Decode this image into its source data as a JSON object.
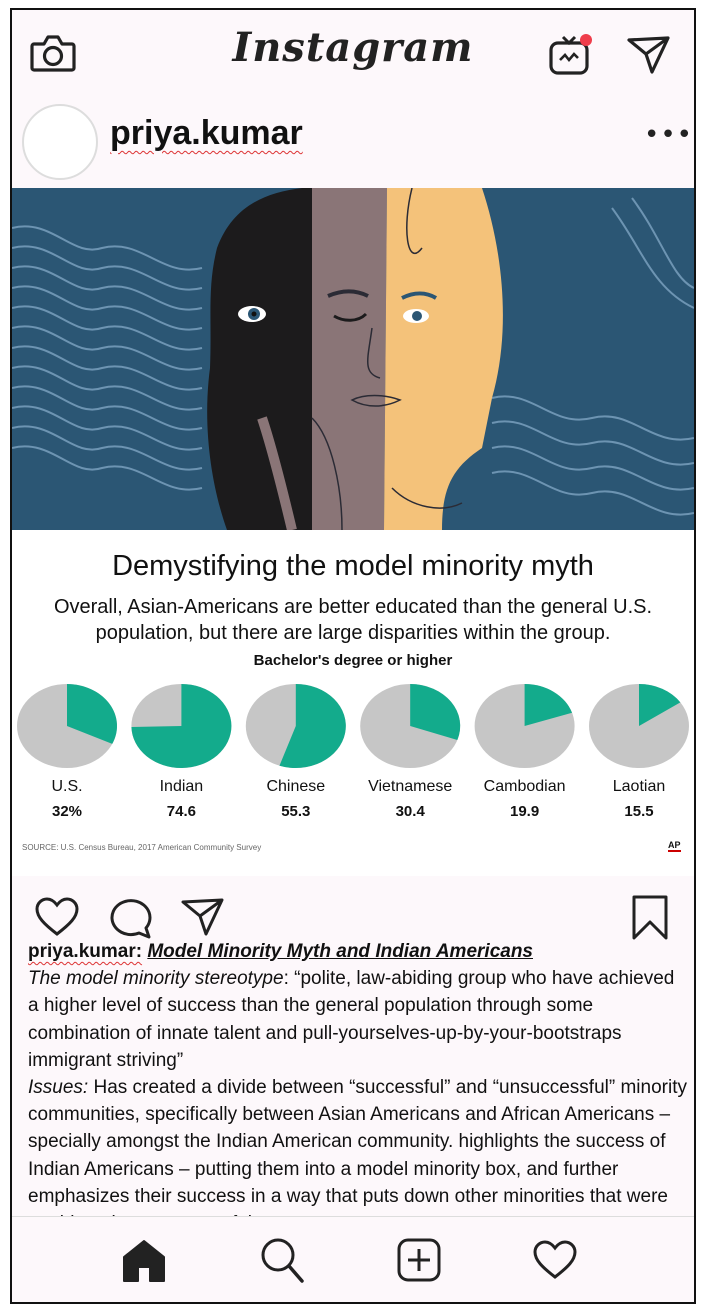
{
  "app": {
    "title": "Instagram"
  },
  "header": {
    "icons": [
      "camera-icon",
      "igtv-icon",
      "direct-message-icon"
    ],
    "notification_color": "#ef3d4b"
  },
  "profile": {
    "username": "priya.kumar",
    "more_label": "•••"
  },
  "post": {
    "headline": "Demystifying the model minority myth",
    "subtitle_line1": "Overall, Asian-Americans are better educated than the general U.S.",
    "subtitle_line2": "population, but there are large disparities within the group.",
    "source": "SOURCE: U.S. Census Bureau, 2017 American Community Survey",
    "ap_logo": "AP"
  },
  "chart_data": {
    "type": "pie",
    "title": "Bachelor's degree or higher",
    "categories": [
      "U.S.",
      "Indian",
      "Chinese",
      "Vietnamese",
      "Cambodian",
      "Laotian"
    ],
    "values": [
      32,
      74.6,
      55.3,
      30.4,
      19.9,
      15.5
    ],
    "value_labels": [
      "32%",
      "74.6",
      "55.3",
      "30.4",
      "19.9",
      "15.5"
    ],
    "colors": {
      "share": "#13ab8c",
      "rest": "#c6c6c6"
    }
  },
  "actions": {
    "icons": [
      "heart-icon",
      "comment-icon",
      "share-icon",
      "bookmark-icon"
    ]
  },
  "caption": {
    "username": "priya.kumar:",
    "title": "Model Minority Myth and Indian Americans",
    "label1": "The model minority stereotype",
    "text1": ": “polite, law-abiding group who have achieved a higher level of success than the general population through some combination of innate talent and pull-yourselves-up-by-your-bootstraps immigrant striving”",
    "label2": "Issues:",
    "text2": " Has created a divide between “successful” and “unsuccessful” minority communities, specifically between Asian Americans and African Americans – specially amongst the Indian American community. highlights the success of Indian Americans – putting them into a model minority box, and further emphasizes their success in a way that puts down other minorities that were unable to be as successful."
  },
  "tabbar": {
    "icons": [
      "home-icon",
      "search-icon",
      "new-post-icon",
      "activity-heart-icon"
    ]
  }
}
